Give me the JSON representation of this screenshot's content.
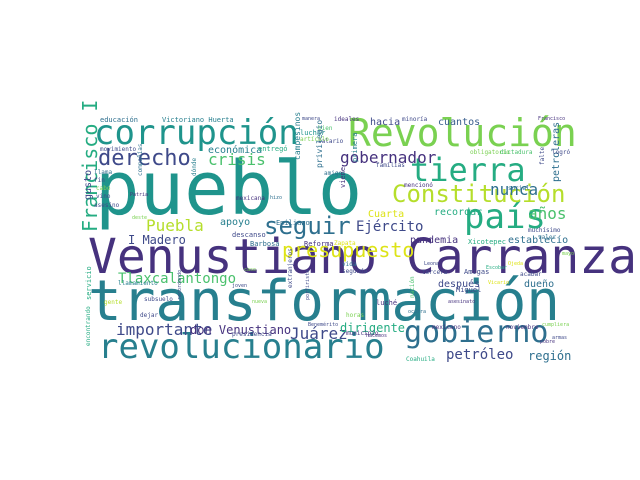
{
  "palette": {
    "dark_purple": "#46327e",
    "indigo": "#3e4989",
    "blue": "#365c8d",
    "steel": "#2e6f8e",
    "teal": "#277f8e",
    "teal_green": "#1f948c",
    "green": "#25ac82",
    "bright_green": "#4ac16d",
    "lime": "#7ad151",
    "light_lime": "#b5de2b",
    "yellow": "#dde318",
    "purple": "#482878",
    "deep": "#440154"
  },
  "words": [
    {
      "text": "pueblo",
      "color": "#1f948c"
    },
    {
      "text": "Venustiano Carranza",
      "color": "#46327e"
    },
    {
      "text": "transformación",
      "color": "#277f8e"
    },
    {
      "text": "Revolución",
      "color": "#7ad151"
    },
    {
      "text": "corrupción",
      "color": "#1f948c"
    },
    {
      "text": "revolucionario",
      "color": "#277f8e"
    },
    {
      "text": "país",
      "color": "#25ac82"
    },
    {
      "text": "tierra",
      "color": "#25ac82"
    },
    {
      "text": "gobierno",
      "color": "#2e6f8e"
    },
    {
      "text": "Constitución",
      "color": "#b5de2b"
    },
    {
      "text": "derecho",
      "color": "#3e4989"
    },
    {
      "text": "seguir",
      "color": "#2e6f8e"
    },
    {
      "text": "Francisco I",
      "color": "#25ac82"
    },
    {
      "text": "presupuesto",
      "color": "#dde318"
    },
    {
      "text": "gobernador",
      "color": "#46327e"
    },
    {
      "text": "crisis",
      "color": "#4ac16d"
    },
    {
      "text": "Puebla",
      "color": "#b5de2b"
    },
    {
      "text": "importante",
      "color": "#3e4989"
    },
    {
      "text": "Juárez",
      "color": "#3e4989"
    },
    {
      "text": "años",
      "color": "#4ac16d"
    },
    {
      "text": "nunca",
      "color": "#2e6f8e"
    },
    {
      "text": "Ejército",
      "color": "#3e4989"
    },
    {
      "text": "Tlaxcalantongo",
      "color": "#4ac16d"
    },
    {
      "text": "petróleo",
      "color": "#3e4989"
    },
    {
      "text": "I Madero",
      "color": "#3e4989"
    },
    {
      "text": "don Venustiano",
      "color": "#46327e"
    },
    {
      "text": "dirigente",
      "color": "#25ac82"
    },
    {
      "text": "región",
      "color": "#2e6f8e"
    },
    {
      "text": "económica",
      "color": "#277f8e"
    },
    {
      "text": "hacia",
      "color": "#3e4989"
    },
    {
      "text": "cuantos",
      "color": "#365c8d"
    },
    {
      "text": "apoyo",
      "color": "#277f8e"
    },
    {
      "text": "pandemia",
      "color": "#46327e"
    },
    {
      "text": "establecío",
      "color": "#2e6f8e"
    },
    {
      "text": "después",
      "color": "#3e4989"
    },
    {
      "text": "dueño",
      "color": "#2e6f8e"
    },
    {
      "text": "Cuarta",
      "color": "#dde318"
    },
    {
      "text": "recordar",
      "color": "#25ac82"
    },
    {
      "text": "educación",
      "color": "#2e6f8e"
    },
    {
      "text": "Victoriano Huerta",
      "color": "#277f8e"
    },
    {
      "text": "ideales",
      "color": "#46327e"
    },
    {
      "text": "minoría",
      "color": "#3e4989"
    },
    {
      "text": "bien",
      "color": "#4ac16d"
    },
    {
      "text": "salario",
      "color": "#3e4989"
    },
    {
      "text": "luchar",
      "color": "#1f948c"
    },
    {
      "text": "entregó",
      "color": "#25ac82"
    },
    {
      "text": "mencionó",
      "color": "#46327e"
    },
    {
      "text": "campesinos",
      "color": "#277f8e"
    },
    {
      "text": "privilegio",
      "color": "#2e6f8e"
    },
    {
      "text": "amigos",
      "color": "#2e6f8e"
    },
    {
      "text": "familias",
      "color": "#3e4989"
    },
    {
      "text": "primera",
      "color": "#277f8e"
    },
    {
      "text": "viene",
      "color": "#46327e"
    },
    {
      "text": "movimiento",
      "color": "#3e4989"
    },
    {
      "text": "llama",
      "color": "#2e6f8e"
    },
    {
      "text": "fin",
      "color": "#3e4989"
    },
    {
      "text": "cabo",
      "color": "#7ad151"
    },
    {
      "text": "vino",
      "color": "#3e4989"
    },
    {
      "text": "asesino",
      "color": "#3e4989"
    },
    {
      "text": "compañías",
      "color": "#2e6f8e"
    },
    {
      "text": "dónde",
      "color": "#277f8e"
    },
    {
      "text": "mexicana",
      "color": "#46327e"
    },
    {
      "text": "descanso",
      "color": "#3e4989"
    },
    {
      "text": "Emiliano",
      "color": "#2e6f8e"
    },
    {
      "text": "Barbosa",
      "color": "#2e6f8e"
    },
    {
      "text": "Reforma",
      "color": "#46327e"
    },
    {
      "text": "Zapata",
      "color": "#dde318"
    },
    {
      "text": "vida",
      "color": "#2e6f8e"
    },
    {
      "text": "segunda",
      "color": "#3e4989"
    },
    {
      "text": "Xicotepec",
      "color": "#25ac82"
    },
    {
      "text": "muchísimo",
      "color": "#3e4989"
    },
    {
      "text": "valer",
      "color": "#2e6f8e"
    },
    {
      "text": "tercera",
      "color": "#3e4989"
    },
    {
      "text": "Amigas",
      "color": "#3e4989"
    },
    {
      "text": "acabar",
      "color": "#3e4989"
    },
    {
      "text": "Miguel",
      "color": "#3e4989"
    },
    {
      "text": "luché",
      "color": "#46327e"
    },
    {
      "text": "horas",
      "color": "#7ad151"
    },
    {
      "text": "mexicano",
      "color": "#46327e"
    },
    {
      "text": "noviembre",
      "color": "#46327e"
    },
    {
      "text": "presidencia",
      "color": "#3e4989"
    },
    {
      "text": "municipio",
      "color": "#46327e"
    },
    {
      "text": "Coahuila",
      "color": "#25ac82"
    },
    {
      "text": "subsuelo",
      "color": "#3e4989"
    },
    {
      "text": "dejar",
      "color": "#3e4989"
    },
    {
      "text": "llamamiento",
      "color": "#277f8e"
    },
    {
      "text": "gente",
      "color": "#b5de2b"
    },
    {
      "text": "servicio",
      "color": "#25ac82"
    },
    {
      "text": "encontrando",
      "color": "#25ac82"
    },
    {
      "text": "petroleras",
      "color": "#2e6f8e"
    },
    {
      "text": "logró",
      "color": "#3e4989"
    },
    {
      "text": "social",
      "color": "#2e6f8e"
    },
    {
      "text": "obligatorio",
      "color": "#7ad151"
    },
    {
      "text": "dictadura",
      "color": "#4ac16d"
    },
    {
      "text": "Francisco",
      "color": "#46327e"
    },
    {
      "text": "manera",
      "color": "#3e4989"
    },
    {
      "text": "artículo",
      "color": "#7ad151"
    },
    {
      "text": "gusto",
      "color": "#3e4989"
    },
    {
      "text": "Patria",
      "color": "#46327e"
    },
    {
      "text": "deste",
      "color": "#7ad151"
    },
    {
      "text": "hizo",
      "color": "#2e6f8e"
    },
    {
      "text": "extranjeros",
      "color": "#3e4989"
    },
    {
      "text": "porfirista",
      "color": "#3e4989"
    },
    {
      "text": "Benemérito",
      "color": "#3e4989"
    },
    {
      "text": "hacemos",
      "color": "#46327e"
    },
    {
      "text": "Leona",
      "color": "#3e4989"
    },
    {
      "text": "Vicario",
      "color": "#dde318"
    },
    {
      "text": "asesinato",
      "color": "#46327e"
    },
    {
      "text": "armas",
      "color": "#3e4989"
    },
    {
      "text": "cumpliera",
      "color": "#7ad151"
    },
    {
      "text": "recordando",
      "color": "#3e4989"
    },
    {
      "text": "mayo",
      "color": "#7ad151"
    },
    {
      "text": "falte",
      "color": "#3e4989"
    },
    {
      "text": "ocurra",
      "color": "#2e6f8e"
    },
    {
      "text": "Escobar",
      "color": "#25ac82"
    },
    {
      "text": "nación",
      "color": "#4ac16d"
    },
    {
      "text": "Ojeda",
      "color": "#dde318"
    },
    {
      "text": "caso",
      "color": "#7ad151"
    },
    {
      "text": "joven",
      "color": "#3e4989"
    },
    {
      "text": "nueva",
      "color": "#7ad151"
    },
    {
      "text": "pobre",
      "color": "#46327e"
    }
  ]
}
